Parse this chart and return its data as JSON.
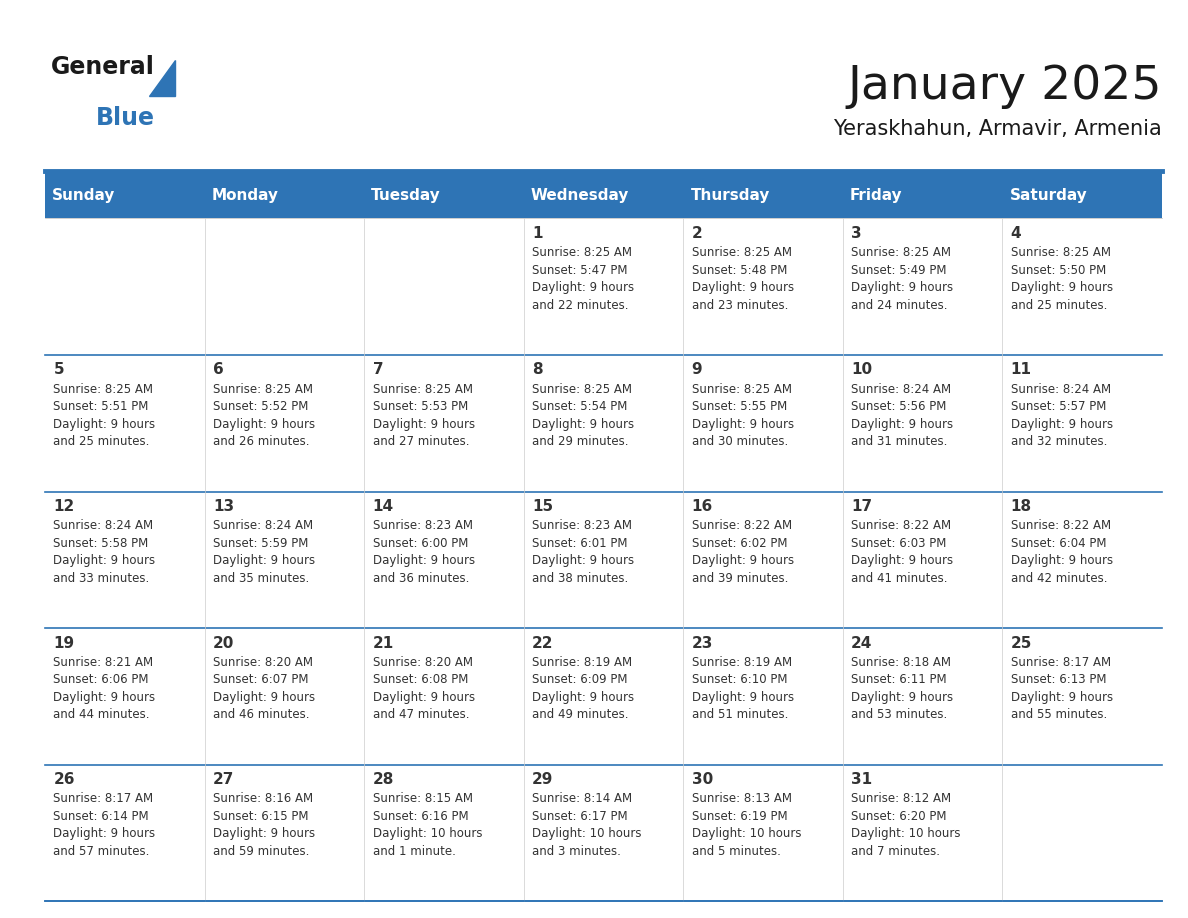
{
  "title": "January 2025",
  "subtitle": "Yeraskhahun, Armavir, Armenia",
  "days_of_week": [
    "Sunday",
    "Monday",
    "Tuesday",
    "Wednesday",
    "Thursday",
    "Friday",
    "Saturday"
  ],
  "header_bg": "#2E74B5",
  "header_text": "#FFFFFF",
  "cell_bg": "#FFFFFF",
  "row_line_color": "#2E74B5",
  "text_color": "#333333",
  "title_color": "#1a1a1a",
  "subtitle_color": "#1a1a1a",
  "logo_black_text": "General",
  "logo_blue_text": "Blue",
  "logo_blue_color": "#2E74B5",
  "calendar_data": [
    [
      null,
      null,
      null,
      {
        "day": 1,
        "sunrise": "8:25 AM",
        "sunset": "5:47 PM",
        "daylight_h": "9 hours",
        "daylight_m": "22 minutes."
      },
      {
        "day": 2,
        "sunrise": "8:25 AM",
        "sunset": "5:48 PM",
        "daylight_h": "9 hours",
        "daylight_m": "23 minutes."
      },
      {
        "day": 3,
        "sunrise": "8:25 AM",
        "sunset": "5:49 PM",
        "daylight_h": "9 hours",
        "daylight_m": "24 minutes."
      },
      {
        "day": 4,
        "sunrise": "8:25 AM",
        "sunset": "5:50 PM",
        "daylight_h": "9 hours",
        "daylight_m": "25 minutes."
      }
    ],
    [
      {
        "day": 5,
        "sunrise": "8:25 AM",
        "sunset": "5:51 PM",
        "daylight_h": "9 hours",
        "daylight_m": "25 minutes."
      },
      {
        "day": 6,
        "sunrise": "8:25 AM",
        "sunset": "5:52 PM",
        "daylight_h": "9 hours",
        "daylight_m": "26 minutes."
      },
      {
        "day": 7,
        "sunrise": "8:25 AM",
        "sunset": "5:53 PM",
        "daylight_h": "9 hours",
        "daylight_m": "27 minutes."
      },
      {
        "day": 8,
        "sunrise": "8:25 AM",
        "sunset": "5:54 PM",
        "daylight_h": "9 hours",
        "daylight_m": "29 minutes."
      },
      {
        "day": 9,
        "sunrise": "8:25 AM",
        "sunset": "5:55 PM",
        "daylight_h": "9 hours",
        "daylight_m": "30 minutes."
      },
      {
        "day": 10,
        "sunrise": "8:24 AM",
        "sunset": "5:56 PM",
        "daylight_h": "9 hours",
        "daylight_m": "31 minutes."
      },
      {
        "day": 11,
        "sunrise": "8:24 AM",
        "sunset": "5:57 PM",
        "daylight_h": "9 hours",
        "daylight_m": "32 minutes."
      }
    ],
    [
      {
        "day": 12,
        "sunrise": "8:24 AM",
        "sunset": "5:58 PM",
        "daylight_h": "9 hours",
        "daylight_m": "33 minutes."
      },
      {
        "day": 13,
        "sunrise": "8:24 AM",
        "sunset": "5:59 PM",
        "daylight_h": "9 hours",
        "daylight_m": "35 minutes."
      },
      {
        "day": 14,
        "sunrise": "8:23 AM",
        "sunset": "6:00 PM",
        "daylight_h": "9 hours",
        "daylight_m": "36 minutes."
      },
      {
        "day": 15,
        "sunrise": "8:23 AM",
        "sunset": "6:01 PM",
        "daylight_h": "9 hours",
        "daylight_m": "38 minutes."
      },
      {
        "day": 16,
        "sunrise": "8:22 AM",
        "sunset": "6:02 PM",
        "daylight_h": "9 hours",
        "daylight_m": "39 minutes."
      },
      {
        "day": 17,
        "sunrise": "8:22 AM",
        "sunset": "6:03 PM",
        "daylight_h": "9 hours",
        "daylight_m": "41 minutes."
      },
      {
        "day": 18,
        "sunrise": "8:22 AM",
        "sunset": "6:04 PM",
        "daylight_h": "9 hours",
        "daylight_m": "42 minutes."
      }
    ],
    [
      {
        "day": 19,
        "sunrise": "8:21 AM",
        "sunset": "6:06 PM",
        "daylight_h": "9 hours",
        "daylight_m": "44 minutes."
      },
      {
        "day": 20,
        "sunrise": "8:20 AM",
        "sunset": "6:07 PM",
        "daylight_h": "9 hours",
        "daylight_m": "46 minutes."
      },
      {
        "day": 21,
        "sunrise": "8:20 AM",
        "sunset": "6:08 PM",
        "daylight_h": "9 hours",
        "daylight_m": "47 minutes."
      },
      {
        "day": 22,
        "sunrise": "8:19 AM",
        "sunset": "6:09 PM",
        "daylight_h": "9 hours",
        "daylight_m": "49 minutes."
      },
      {
        "day": 23,
        "sunrise": "8:19 AM",
        "sunset": "6:10 PM",
        "daylight_h": "9 hours",
        "daylight_m": "51 minutes."
      },
      {
        "day": 24,
        "sunrise": "8:18 AM",
        "sunset": "6:11 PM",
        "daylight_h": "9 hours",
        "daylight_m": "53 minutes."
      },
      {
        "day": 25,
        "sunrise": "8:17 AM",
        "sunset": "6:13 PM",
        "daylight_h": "9 hours",
        "daylight_m": "55 minutes."
      }
    ],
    [
      {
        "day": 26,
        "sunrise": "8:17 AM",
        "sunset": "6:14 PM",
        "daylight_h": "9 hours",
        "daylight_m": "57 minutes."
      },
      {
        "day": 27,
        "sunrise": "8:16 AM",
        "sunset": "6:15 PM",
        "daylight_h": "9 hours",
        "daylight_m": "59 minutes."
      },
      {
        "day": 28,
        "sunrise": "8:15 AM",
        "sunset": "6:16 PM",
        "daylight_h": "10 hours",
        "daylight_m": "1 minute."
      },
      {
        "day": 29,
        "sunrise": "8:14 AM",
        "sunset": "6:17 PM",
        "daylight_h": "10 hours",
        "daylight_m": "3 minutes."
      },
      {
        "day": 30,
        "sunrise": "8:13 AM",
        "sunset": "6:19 PM",
        "daylight_h": "10 hours",
        "daylight_m": "5 minutes."
      },
      {
        "day": 31,
        "sunrise": "8:12 AM",
        "sunset": "6:20 PM",
        "daylight_h": "10 hours",
        "daylight_m": "7 minutes."
      },
      null
    ]
  ]
}
